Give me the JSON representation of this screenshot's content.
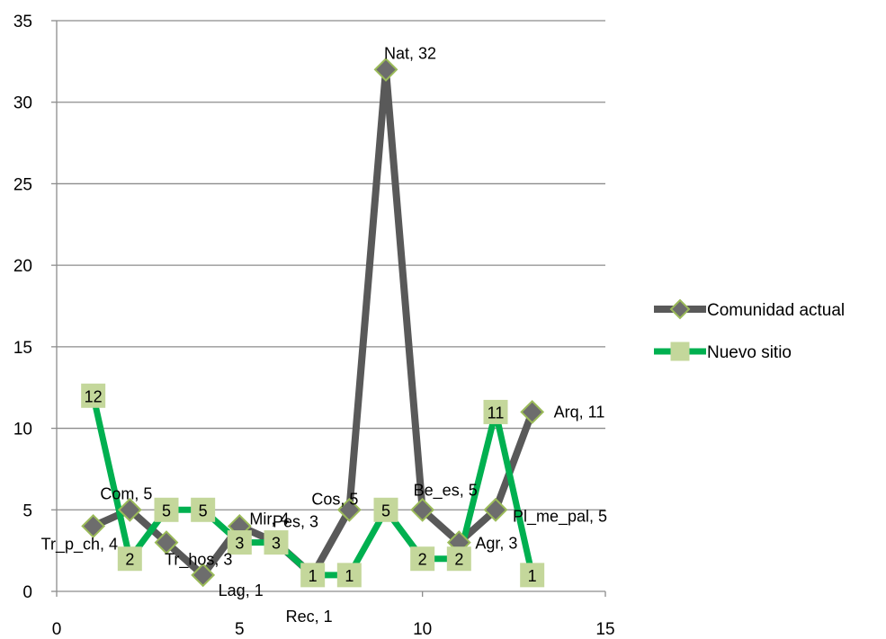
{
  "chart_data": {
    "type": "scatter",
    "title": "",
    "xlabel": "",
    "ylabel": "",
    "xlim": [
      0,
      15
    ],
    "ylim": [
      0,
      35
    ],
    "x_ticks": [
      0,
      5,
      10,
      15
    ],
    "y_ticks": [
      0,
      5,
      10,
      15,
      20,
      25,
      30,
      35
    ],
    "grid": "horizontal",
    "legend_position": "right",
    "series": [
      {
        "name": "Comunidad actual",
        "color": "#595959",
        "marker": "diamond",
        "marker_fill": "#6d6d6d",
        "marker_stroke": "#9bbb59",
        "points": [
          {
            "x": 1,
            "y": 4,
            "label": "Tr_p_ch, 4"
          },
          {
            "x": 2,
            "y": 5,
            "label": "Com, 5"
          },
          {
            "x": 3,
            "y": 3,
            "label": "Tr_hos, 3"
          },
          {
            "x": 4,
            "y": 1,
            "label": "Lag, 1"
          },
          {
            "x": 5,
            "y": 4,
            "label": "Mir, 4"
          },
          {
            "x": 6,
            "y": 3,
            "label": "Pes, 3"
          },
          {
            "x": 7,
            "y": 1,
            "label": "Rec, 1"
          },
          {
            "x": 8,
            "y": 5,
            "label": "Cos, 5"
          },
          {
            "x": 9,
            "y": 32,
            "label": "Nat, 32"
          },
          {
            "x": 10,
            "y": 5,
            "label": "Be_es, 5"
          },
          {
            "x": 11,
            "y": 3,
            "label": "Agr, 3"
          },
          {
            "x": 12,
            "y": 5,
            "label": "Pl_me_pal, 5"
          },
          {
            "x": 13,
            "y": 11,
            "label": "Arq, 11"
          }
        ]
      },
      {
        "name": "Nuevo sitio",
        "color": "#00b050",
        "marker": "square",
        "marker_fill": "#c4d79b",
        "marker_stroke": "#c4d79b",
        "points": [
          {
            "x": 1,
            "y": 12,
            "label": "12"
          },
          {
            "x": 2,
            "y": 2,
            "label": "2"
          },
          {
            "x": 3,
            "y": 5,
            "label": "5"
          },
          {
            "x": 4,
            "y": 5,
            "label": "5"
          },
          {
            "x": 5,
            "y": 3,
            "label": "3"
          },
          {
            "x": 6,
            "y": 3,
            "label": "3"
          },
          {
            "x": 7,
            "y": 1,
            "label": "1"
          },
          {
            "x": 8,
            "y": 1,
            "label": "1"
          },
          {
            "x": 9,
            "y": 5,
            "label": "5"
          },
          {
            "x": 10,
            "y": 2,
            "label": "2"
          },
          {
            "x": 11,
            "y": 2,
            "label": "2"
          },
          {
            "x": 12,
            "y": 11,
            "label": "11"
          },
          {
            "x": 13,
            "y": 1,
            "label": "1"
          }
        ]
      }
    ]
  }
}
